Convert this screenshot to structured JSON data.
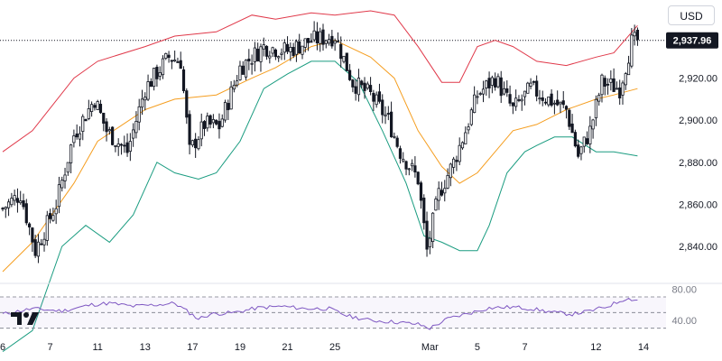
{
  "currency": "USD",
  "price_label": "2,937.96",
  "logo_icon": "tradingview-logo-icon",
  "colors": {
    "up": "#131722",
    "down": "#131722",
    "upper_band": "#e0394a",
    "middle_band": "#f59e20",
    "lower_band": "#1a9c80",
    "rsi": "#7e57c2",
    "rsi_band": "#787b86",
    "price_badge": "#131722"
  },
  "chart_data": [
    {
      "type": "candlestick",
      "title": "",
      "xlabel": "",
      "ylabel": "",
      "y_ticks": [
        {
          "value": 2840,
          "label": "2,840.00"
        },
        {
          "value": 2860,
          "label": "2,860.00"
        },
        {
          "value": 2880,
          "label": "2,880.00"
        },
        {
          "value": 2900,
          "label": "2,900.00"
        },
        {
          "value": 2920,
          "label": "2,920.00"
        }
      ],
      "ylim": [
        2825,
        2955
      ],
      "x_ticks": [
        {
          "index": 0,
          "label": "6"
        },
        {
          "index": 16,
          "label": "7"
        },
        {
          "index": 32,
          "label": "11"
        },
        {
          "index": 48,
          "label": "13"
        },
        {
          "index": 64,
          "label": "17"
        },
        {
          "index": 80,
          "label": "19"
        },
        {
          "index": 96,
          "label": "21"
        },
        {
          "index": 112,
          "label": "25"
        },
        {
          "index": 144,
          "label": "Mar"
        },
        {
          "index": 160,
          "label": "5"
        },
        {
          "index": 176,
          "label": "7"
        },
        {
          "index": 200,
          "label": "12"
        },
        {
          "index": 216,
          "label": "14"
        }
      ],
      "last_price": 2937.96,
      "grid": false,
      "legend": "none",
      "key_points": [
        {
          "index": 0,
          "close": 2858
        },
        {
          "index": 6,
          "close": 2865
        },
        {
          "index": 11,
          "close": 2838
        },
        {
          "index": 18,
          "close": 2860
        },
        {
          "index": 24,
          "close": 2893
        },
        {
          "index": 31,
          "close": 2910
        },
        {
          "index": 35,
          "close": 2895
        },
        {
          "index": 42,
          "close": 2885
        },
        {
          "index": 48,
          "close": 2915
        },
        {
          "index": 56,
          "close": 2930
        },
        {
          "index": 60,
          "close": 2928
        },
        {
          "index": 63,
          "close": 2885
        },
        {
          "index": 68,
          "close": 2898
        },
        {
          "index": 73,
          "close": 2897
        },
        {
          "index": 80,
          "close": 2925
        },
        {
          "index": 88,
          "close": 2935
        },
        {
          "index": 96,
          "close": 2933
        },
        {
          "index": 104,
          "close": 2938
        },
        {
          "index": 112,
          "close": 2940
        },
        {
          "index": 118,
          "close": 2918
        },
        {
          "index": 124,
          "close": 2912
        },
        {
          "index": 130,
          "close": 2900
        },
        {
          "index": 134,
          "close": 2885
        },
        {
          "index": 140,
          "close": 2872
        },
        {
          "index": 143,
          "close": 2838
        },
        {
          "index": 147,
          "close": 2865
        },
        {
          "index": 152,
          "close": 2880
        },
        {
          "index": 156,
          "close": 2895
        },
        {
          "index": 160,
          "close": 2912
        },
        {
          "index": 166,
          "close": 2920
        },
        {
          "index": 172,
          "close": 2905
        },
        {
          "index": 178,
          "close": 2915
        },
        {
          "index": 184,
          "close": 2910
        },
        {
          "index": 190,
          "close": 2905
        },
        {
          "index": 194,
          "close": 2883
        },
        {
          "index": 198,
          "close": 2895
        },
        {
          "index": 202,
          "close": 2918
        },
        {
          "index": 208,
          "close": 2915
        },
        {
          "index": 212,
          "close": 2937
        },
        {
          "index": 214,
          "close": 2937.96
        }
      ],
      "bands": {
        "upper": [
          [
            0,
            2885
          ],
          [
            10,
            2895
          ],
          [
            24,
            2920
          ],
          [
            32,
            2928
          ],
          [
            48,
            2935
          ],
          [
            58,
            2940
          ],
          [
            72,
            2942
          ],
          [
            84,
            2950
          ],
          [
            92,
            2948
          ],
          [
            104,
            2951
          ],
          [
            112,
            2950
          ],
          [
            124,
            2952
          ],
          [
            132,
            2950
          ],
          [
            140,
            2935
          ],
          [
            148,
            2918
          ],
          [
            154,
            2918
          ],
          [
            160,
            2935
          ],
          [
            166,
            2938
          ],
          [
            172,
            2935
          ],
          [
            180,
            2928
          ],
          [
            190,
            2926
          ],
          [
            200,
            2930
          ],
          [
            206,
            2932
          ],
          [
            214,
            2945
          ]
        ],
        "middle": [
          [
            0,
            2828
          ],
          [
            10,
            2842
          ],
          [
            24,
            2870
          ],
          [
            32,
            2890
          ],
          [
            48,
            2905
          ],
          [
            58,
            2910
          ],
          [
            72,
            2912
          ],
          [
            84,
            2920
          ],
          [
            92,
            2925
          ],
          [
            104,
            2935
          ],
          [
            112,
            2938
          ],
          [
            124,
            2930
          ],
          [
            132,
            2920
          ],
          [
            140,
            2895
          ],
          [
            148,
            2878
          ],
          [
            154,
            2870
          ],
          [
            160,
            2875
          ],
          [
            166,
            2885
          ],
          [
            172,
            2895
          ],
          [
            180,
            2898
          ],
          [
            190,
            2905
          ],
          [
            200,
            2910
          ],
          [
            206,
            2912
          ],
          [
            214,
            2915
          ]
        ],
        "lower": [
          [
            0,
            2790
          ],
          [
            10,
            2800
          ],
          [
            20,
            2840
          ],
          [
            28,
            2850
          ],
          [
            36,
            2842
          ],
          [
            44,
            2855
          ],
          [
            52,
            2880
          ],
          [
            58,
            2875
          ],
          [
            66,
            2872
          ],
          [
            72,
            2875
          ],
          [
            80,
            2890
          ],
          [
            88,
            2915
          ],
          [
            96,
            2922
          ],
          [
            104,
            2928
          ],
          [
            112,
            2928
          ],
          [
            120,
            2918
          ],
          [
            128,
            2895
          ],
          [
            136,
            2870
          ],
          [
            142,
            2845
          ],
          [
            148,
            2842
          ],
          [
            154,
            2838
          ],
          [
            160,
            2838
          ],
          [
            164,
            2850
          ],
          [
            170,
            2875
          ],
          [
            176,
            2885
          ],
          [
            180,
            2888
          ],
          [
            186,
            2892
          ],
          [
            192,
            2892
          ],
          [
            200,
            2885
          ],
          [
            206,
            2885
          ],
          [
            214,
            2883
          ]
        ]
      }
    },
    {
      "type": "line",
      "title": "",
      "y_ticks": [
        {
          "value": 40,
          "label": "40.00"
        },
        {
          "value": 80,
          "label": "80.00"
        }
      ],
      "ylim": [
        25,
        85
      ],
      "reference_levels": [
        30,
        50,
        70
      ],
      "series": [
        {
          "values": [
            [
              0,
              48
            ],
            [
              10,
              55
            ],
            [
              20,
              52
            ],
            [
              30,
              60
            ],
            [
              36,
              62
            ],
            [
              44,
              58
            ],
            [
              52,
              60
            ],
            [
              58,
              62
            ],
            [
              62,
              52
            ],
            [
              66,
              42
            ],
            [
              70,
              48
            ],
            [
              78,
              50
            ],
            [
              86,
              56
            ],
            [
              94,
              58
            ],
            [
              102,
              55
            ],
            [
              110,
              55
            ],
            [
              116,
              46
            ],
            [
              124,
              40
            ],
            [
              132,
              38
            ],
            [
              140,
              35
            ],
            [
              144,
              30
            ],
            [
              150,
              42
            ],
            [
              156,
              48
            ],
            [
              164,
              56
            ],
            [
              172,
              57
            ],
            [
              178,
              55
            ],
            [
              186,
              50
            ],
            [
              192,
              48
            ],
            [
              198,
              52
            ],
            [
              204,
              58
            ],
            [
              210,
              68
            ],
            [
              214,
              66
            ]
          ]
        }
      ]
    }
  ]
}
